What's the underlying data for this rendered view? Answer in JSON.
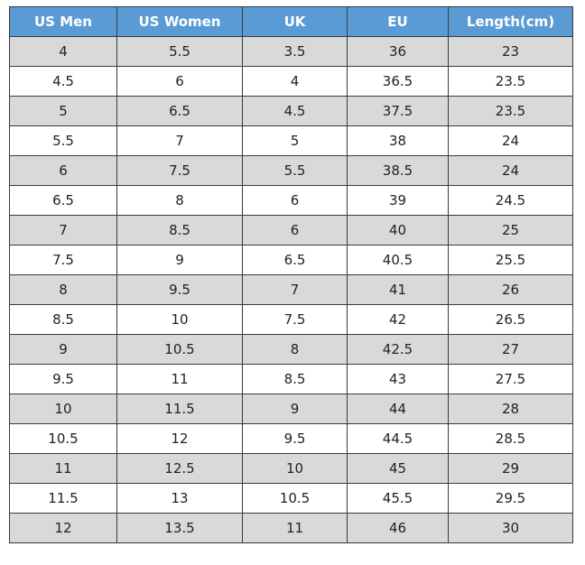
{
  "table": {
    "header": [
      "US Men",
      "US Women",
      "UK",
      "EU",
      "Length(cm)"
    ],
    "rows": [
      [
        4,
        5.5,
        3.5,
        36,
        23
      ],
      [
        4.5,
        6,
        4,
        36.5,
        23.5
      ],
      [
        5,
        6.5,
        4.5,
        37.5,
        23.5
      ],
      [
        5.5,
        7,
        5,
        38,
        24
      ],
      [
        6,
        7.5,
        5.5,
        38.5,
        24
      ],
      [
        6.5,
        8,
        6,
        39,
        24.5
      ],
      [
        7,
        8.5,
        6,
        40,
        25
      ],
      [
        7.5,
        9,
        6.5,
        40.5,
        25.5
      ],
      [
        8,
        9.5,
        7,
        41,
        26
      ],
      [
        8.5,
        10,
        7.5,
        42,
        26.5
      ],
      [
        9,
        10.5,
        8,
        42.5,
        27
      ],
      [
        9.5,
        11,
        8.5,
        43,
        27.5
      ],
      [
        10,
        11.5,
        9,
        44,
        28
      ],
      [
        10.5,
        12,
        9.5,
        44.5,
        28.5
      ],
      [
        11,
        12.5,
        10,
        45,
        29
      ],
      [
        11.5,
        13,
        10.5,
        45.5,
        29.5
      ],
      [
        12,
        13.5,
        11,
        46,
        30
      ]
    ]
  }
}
